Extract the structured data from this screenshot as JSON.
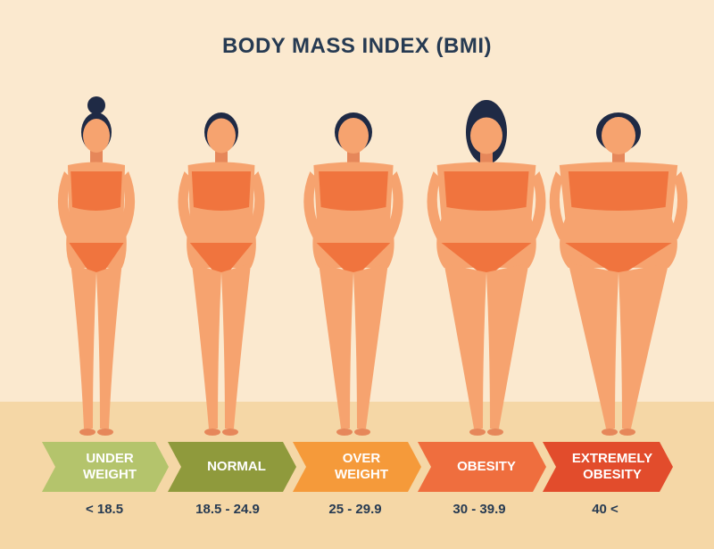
{
  "title": "BODY MASS INDEX (BMI)",
  "categories": [
    {
      "label": "UNDER\nWEIGHT",
      "range": "< 18.5",
      "color": "#b4c46c"
    },
    {
      "label": "NORMAL",
      "range": "18.5 - 24.9",
      "color": "#8f9a3c"
    },
    {
      "label": "OVER\nWEIGHT",
      "range": "25 - 29.9",
      "color": "#f59a3a"
    },
    {
      "label": "OBESITY",
      "range": "30 - 39.9",
      "color": "#ef6e3e"
    },
    {
      "label": "EXTREMELY\nOBESITY",
      "range": "40 <",
      "color": "#e24c2c"
    }
  ],
  "colors": {
    "background": "#fbe9cf",
    "floor": "#f5d7a6",
    "skin": "#f6a36f",
    "skin_shadow": "#e6875a",
    "swimsuit": "#f0743e",
    "hair": "#1f2a45",
    "text": "#263a52"
  }
}
